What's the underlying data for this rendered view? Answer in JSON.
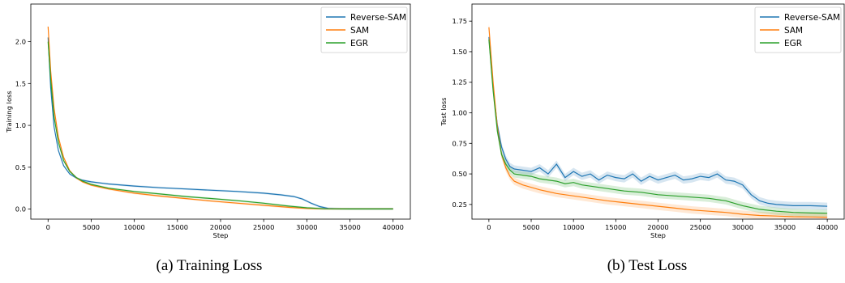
{
  "chart_data": [
    {
      "type": "line",
      "ylabel": "Training loss",
      "xlabel": "Step",
      "xlim": [
        -2000,
        42000
      ],
      "ylim": [
        -0.12,
        2.45
      ],
      "xticks": [
        0,
        5000,
        10000,
        15000,
        20000,
        25000,
        30000,
        35000,
        40000
      ],
      "yticks": [
        0.0,
        0.5,
        1.0,
        1.5,
        2.0
      ],
      "ytick_labels": [
        "0.0",
        "0.5",
        "1.0",
        "1.5",
        "2.0"
      ],
      "legend_position": "top-right",
      "grid": false,
      "series": [
        {
          "name": "Reverse-SAM",
          "color": "#1f77b4",
          "x": [
            0,
            300,
            700,
            1200,
            1800,
            2500,
            3300,
            4000,
            5000,
            7000,
            10000,
            13000,
            16000,
            19000,
            22000,
            25000,
            27000,
            28500,
            29500,
            30500,
            31500,
            32500,
            34000,
            37000,
            40000
          ],
          "y": [
            2.05,
            1.45,
            0.98,
            0.7,
            0.52,
            0.42,
            0.37,
            0.345,
            0.325,
            0.3,
            0.275,
            0.255,
            0.24,
            0.225,
            0.21,
            0.19,
            0.17,
            0.15,
            0.12,
            0.07,
            0.03,
            0.008,
            0.003,
            0.002,
            0.002
          ]
        },
        {
          "name": "SAM",
          "color": "#ff7f0e",
          "x": [
            0,
            300,
            700,
            1200,
            1800,
            2500,
            3300,
            4000,
            5000,
            7000,
            10000,
            13000,
            16000,
            19000,
            22000,
            25000,
            28000,
            30000,
            32000,
            35000,
            40000
          ],
          "y": [
            2.18,
            1.65,
            1.2,
            0.86,
            0.62,
            0.46,
            0.37,
            0.325,
            0.285,
            0.24,
            0.19,
            0.155,
            0.125,
            0.095,
            0.07,
            0.045,
            0.02,
            0.008,
            0.003,
            0.002,
            0.002
          ]
        },
        {
          "name": "EGR",
          "color": "#2ca02c",
          "x": [
            0,
            300,
            700,
            1200,
            1800,
            2500,
            3300,
            4000,
            5000,
            7000,
            10000,
            13000,
            16000,
            19000,
            22000,
            25000,
            28000,
            30000,
            32000,
            35000,
            40000
          ],
          "y": [
            2.0,
            1.55,
            1.1,
            0.8,
            0.58,
            0.45,
            0.375,
            0.335,
            0.295,
            0.25,
            0.21,
            0.18,
            0.15,
            0.125,
            0.1,
            0.07,
            0.035,
            0.015,
            0.004,
            0.002,
            0.002
          ]
        }
      ]
    },
    {
      "type": "line",
      "ylabel": "Test loss",
      "xlabel": "Step",
      "xlim": [
        -2000,
        42000
      ],
      "ylim": [
        0.13,
        1.89
      ],
      "xticks": [
        0,
        5000,
        10000,
        15000,
        20000,
        25000,
        30000,
        35000,
        40000
      ],
      "yticks": [
        0.25,
        0.5,
        0.75,
        1.0,
        1.25,
        1.5,
        1.75
      ],
      "ytick_labels": [
        "0.25",
        "0.50",
        "0.75",
        "1.00",
        "1.25",
        "1.50",
        "1.75"
      ],
      "legend_position": "top-right",
      "grid": false,
      "series": [
        {
          "name": "Reverse-SAM",
          "color": "#1f77b4",
          "x": [
            0,
            500,
            1000,
            1500,
            2000,
            2500,
            3000,
            4000,
            5000,
            6000,
            7000,
            8000,
            9000,
            10000,
            11000,
            12000,
            13000,
            14000,
            15000,
            16000,
            17000,
            18000,
            19000,
            20000,
            21000,
            22000,
            23000,
            24000,
            25000,
            26000,
            27000,
            28000,
            29000,
            30000,
            31000,
            32000,
            33000,
            34000,
            35000,
            36000,
            38000,
            40000
          ],
          "y": [
            1.62,
            1.2,
            0.9,
            0.72,
            0.62,
            0.56,
            0.54,
            0.53,
            0.52,
            0.55,
            0.5,
            0.58,
            0.47,
            0.52,
            0.48,
            0.5,
            0.45,
            0.49,
            0.47,
            0.46,
            0.5,
            0.44,
            0.48,
            0.45,
            0.47,
            0.49,
            0.45,
            0.46,
            0.48,
            0.47,
            0.5,
            0.45,
            0.44,
            0.41,
            0.33,
            0.28,
            0.26,
            0.25,
            0.245,
            0.24,
            0.24,
            0.235
          ]
        },
        {
          "name": "SAM",
          "color": "#ff7f0e",
          "x": [
            0,
            500,
            1000,
            1500,
            2000,
            2500,
            3000,
            4000,
            5000,
            6000,
            7000,
            8000,
            10000,
            12000,
            14000,
            16000,
            18000,
            20000,
            22000,
            24000,
            26000,
            28000,
            30000,
            32000,
            34000,
            36000,
            38000,
            40000
          ],
          "y": [
            1.7,
            1.25,
            0.88,
            0.66,
            0.55,
            0.48,
            0.44,
            0.41,
            0.39,
            0.37,
            0.355,
            0.34,
            0.32,
            0.3,
            0.28,
            0.265,
            0.25,
            0.235,
            0.22,
            0.205,
            0.195,
            0.185,
            0.17,
            0.16,
            0.155,
            0.15,
            0.148,
            0.145
          ]
        },
        {
          "name": "EGR",
          "color": "#2ca02c",
          "x": [
            0,
            500,
            1000,
            1500,
            2000,
            2500,
            3000,
            4000,
            5000,
            6000,
            7000,
            8000,
            9000,
            10000,
            11000,
            12000,
            13000,
            14000,
            15000,
            16000,
            18000,
            20000,
            22000,
            24000,
            26000,
            28000,
            30000,
            32000,
            34000,
            36000,
            38000,
            40000
          ],
          "y": [
            1.6,
            1.18,
            0.85,
            0.66,
            0.58,
            0.53,
            0.5,
            0.49,
            0.48,
            0.46,
            0.45,
            0.44,
            0.42,
            0.43,
            0.41,
            0.4,
            0.39,
            0.38,
            0.37,
            0.36,
            0.35,
            0.33,
            0.32,
            0.31,
            0.3,
            0.28,
            0.24,
            0.21,
            0.195,
            0.185,
            0.18,
            0.178
          ]
        }
      ]
    }
  ],
  "captions": [
    "(a) Training Loss",
    "(b) Test Loss"
  ]
}
